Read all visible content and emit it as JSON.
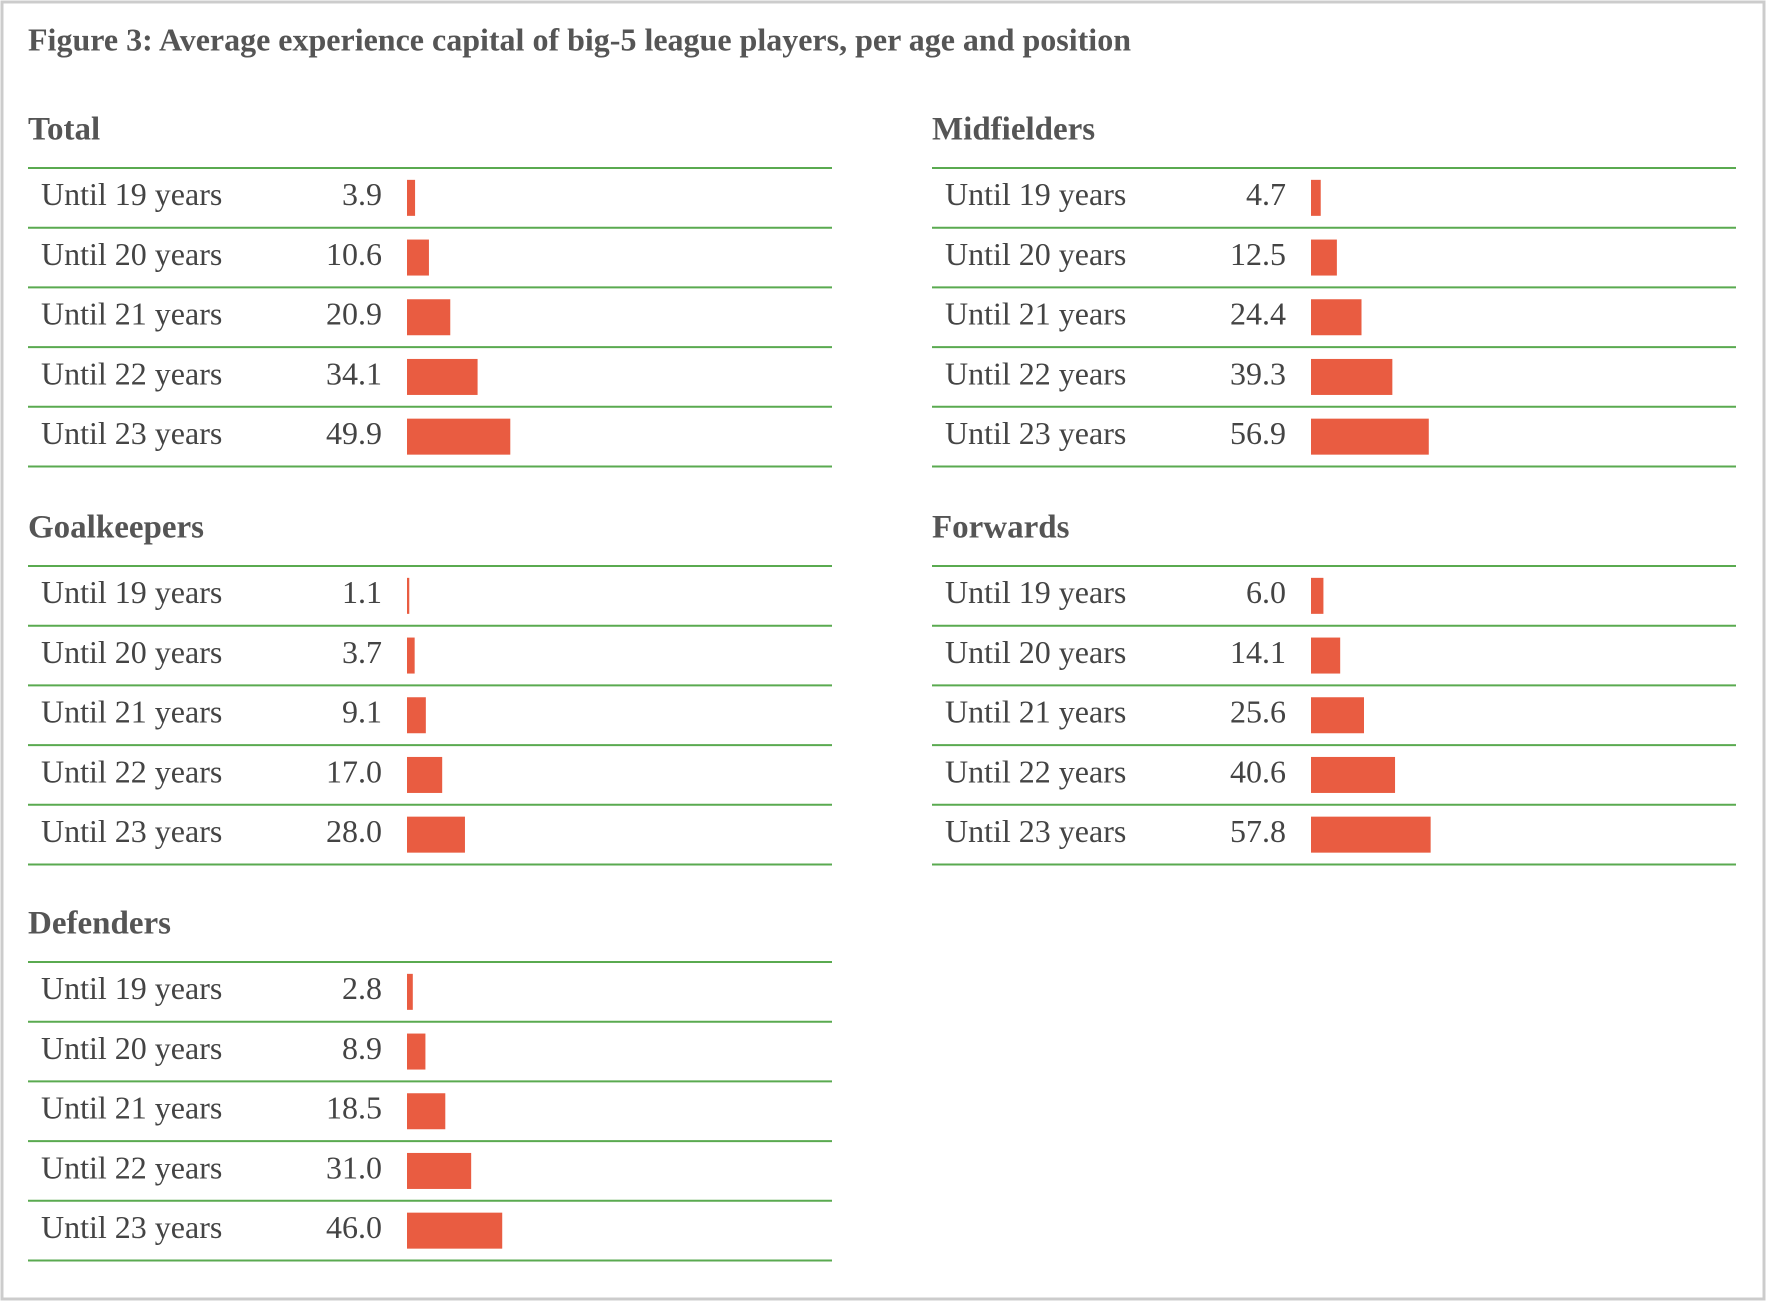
{
  "title": "Figure 3: Average experience capital of big-5 league players, per age and position",
  "chart_data": [
    {
      "type": "bar",
      "title": "Total",
      "color": "#e95c41",
      "categories": [
        "Until 19 years",
        "Until 20 years",
        "Until 21 years",
        "Until 22 years",
        "Until 23 years"
      ],
      "values": [
        3.9,
        10.6,
        20.9,
        34.1,
        49.9
      ],
      "value_labels": [
        "3.9",
        "10.6",
        "20.9",
        "34.1",
        "49.9"
      ]
    },
    {
      "type": "bar",
      "title": "Goalkeepers",
      "color": "#e95c41",
      "categories": [
        "Until 19 years",
        "Until 20 years",
        "Until 21 years",
        "Until 22 years",
        "Until 23 years"
      ],
      "values": [
        1.1,
        3.7,
        9.1,
        17.0,
        28.0
      ],
      "value_labels": [
        "1.1",
        "3.7",
        "9.1",
        "17.0",
        "28.0"
      ]
    },
    {
      "type": "bar",
      "title": "Defenders",
      "color": "#e95c41",
      "categories": [
        "Until 19 years",
        "Until 20 years",
        "Until 21 years",
        "Until 22 years",
        "Until 23 years"
      ],
      "values": [
        2.8,
        8.9,
        18.5,
        31.0,
        46.0
      ],
      "value_labels": [
        "2.8",
        "8.9",
        "18.5",
        "31.0",
        "46.0"
      ]
    },
    {
      "type": "bar",
      "title": "Midfielders",
      "color": "#e95c41",
      "categories": [
        "Until 19 years",
        "Until 20 years",
        "Until 21 years",
        "Until 22 years",
        "Until 23 years"
      ],
      "values": [
        4.7,
        12.5,
        24.4,
        39.3,
        56.9
      ],
      "value_labels": [
        "4.7",
        "12.5",
        "24.4",
        "39.3",
        "56.9"
      ]
    },
    {
      "type": "bar",
      "title": "Forwards",
      "color": "#e95c41",
      "categories": [
        "Until 19 years",
        "Until 20 years",
        "Until 21 years",
        "Until 22 years",
        "Until 23 years"
      ],
      "values": [
        6.0,
        14.1,
        25.6,
        40.6,
        57.8
      ],
      "value_labels": [
        "6.0",
        "14.1",
        "25.6",
        "40.6",
        "57.8"
      ]
    }
  ]
}
